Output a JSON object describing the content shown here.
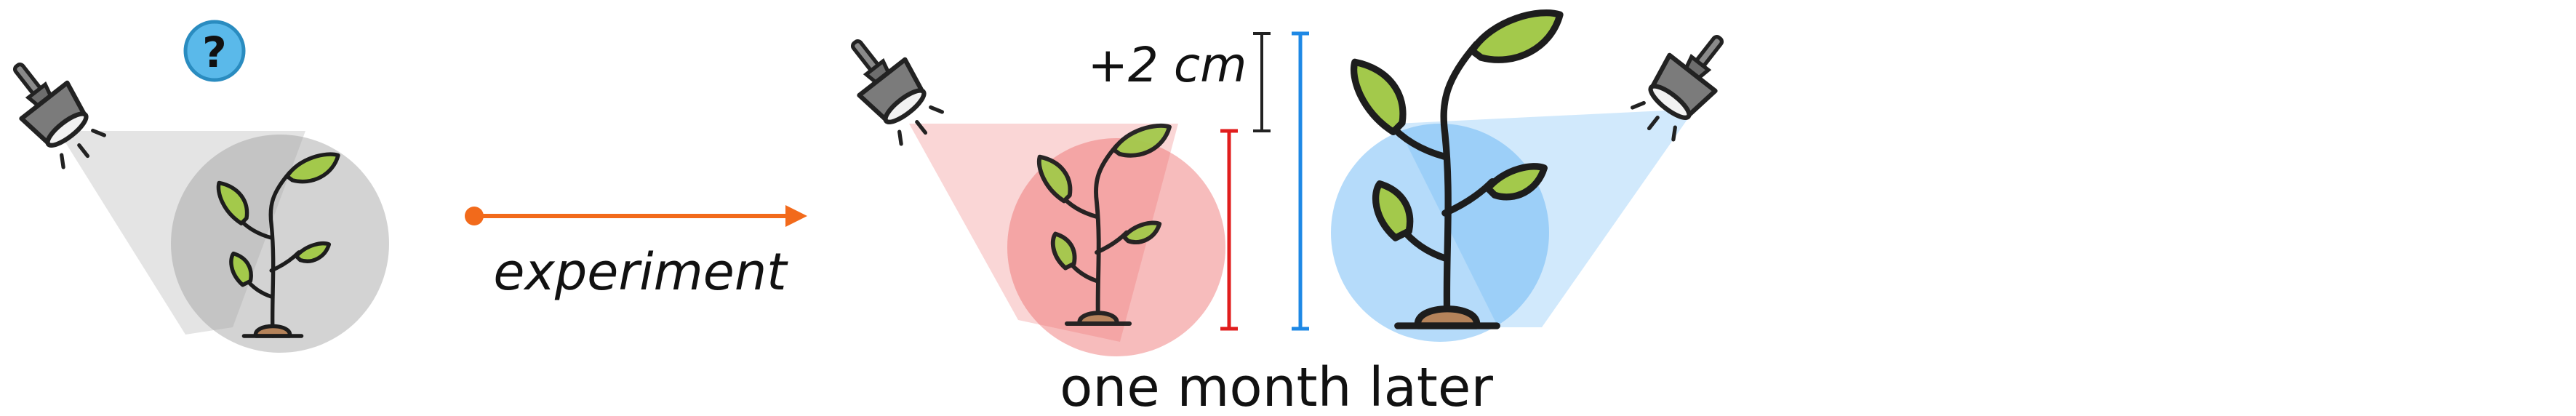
{
  "labels": {
    "question": "?",
    "arrow_label": "experiment",
    "growth": "+2 cm",
    "caption": "one month later"
  },
  "icons": {
    "unknown": "question-mark-icon",
    "lamp": "spotlight-lamp-icon",
    "plant": "sprout-plant-icon",
    "arrow": "arrow-right-icon"
  },
  "colors": {
    "neutral_light": "#9e9e9e",
    "red_light": "#ee6b6b",
    "red_marker": "#e11d1d",
    "blue_light": "#5bb0f5",
    "blue_marker": "#1e88e5",
    "arrow": "#f26a1b",
    "question_badge": "#5ab9ea",
    "height_marker": "#222222"
  }
}
